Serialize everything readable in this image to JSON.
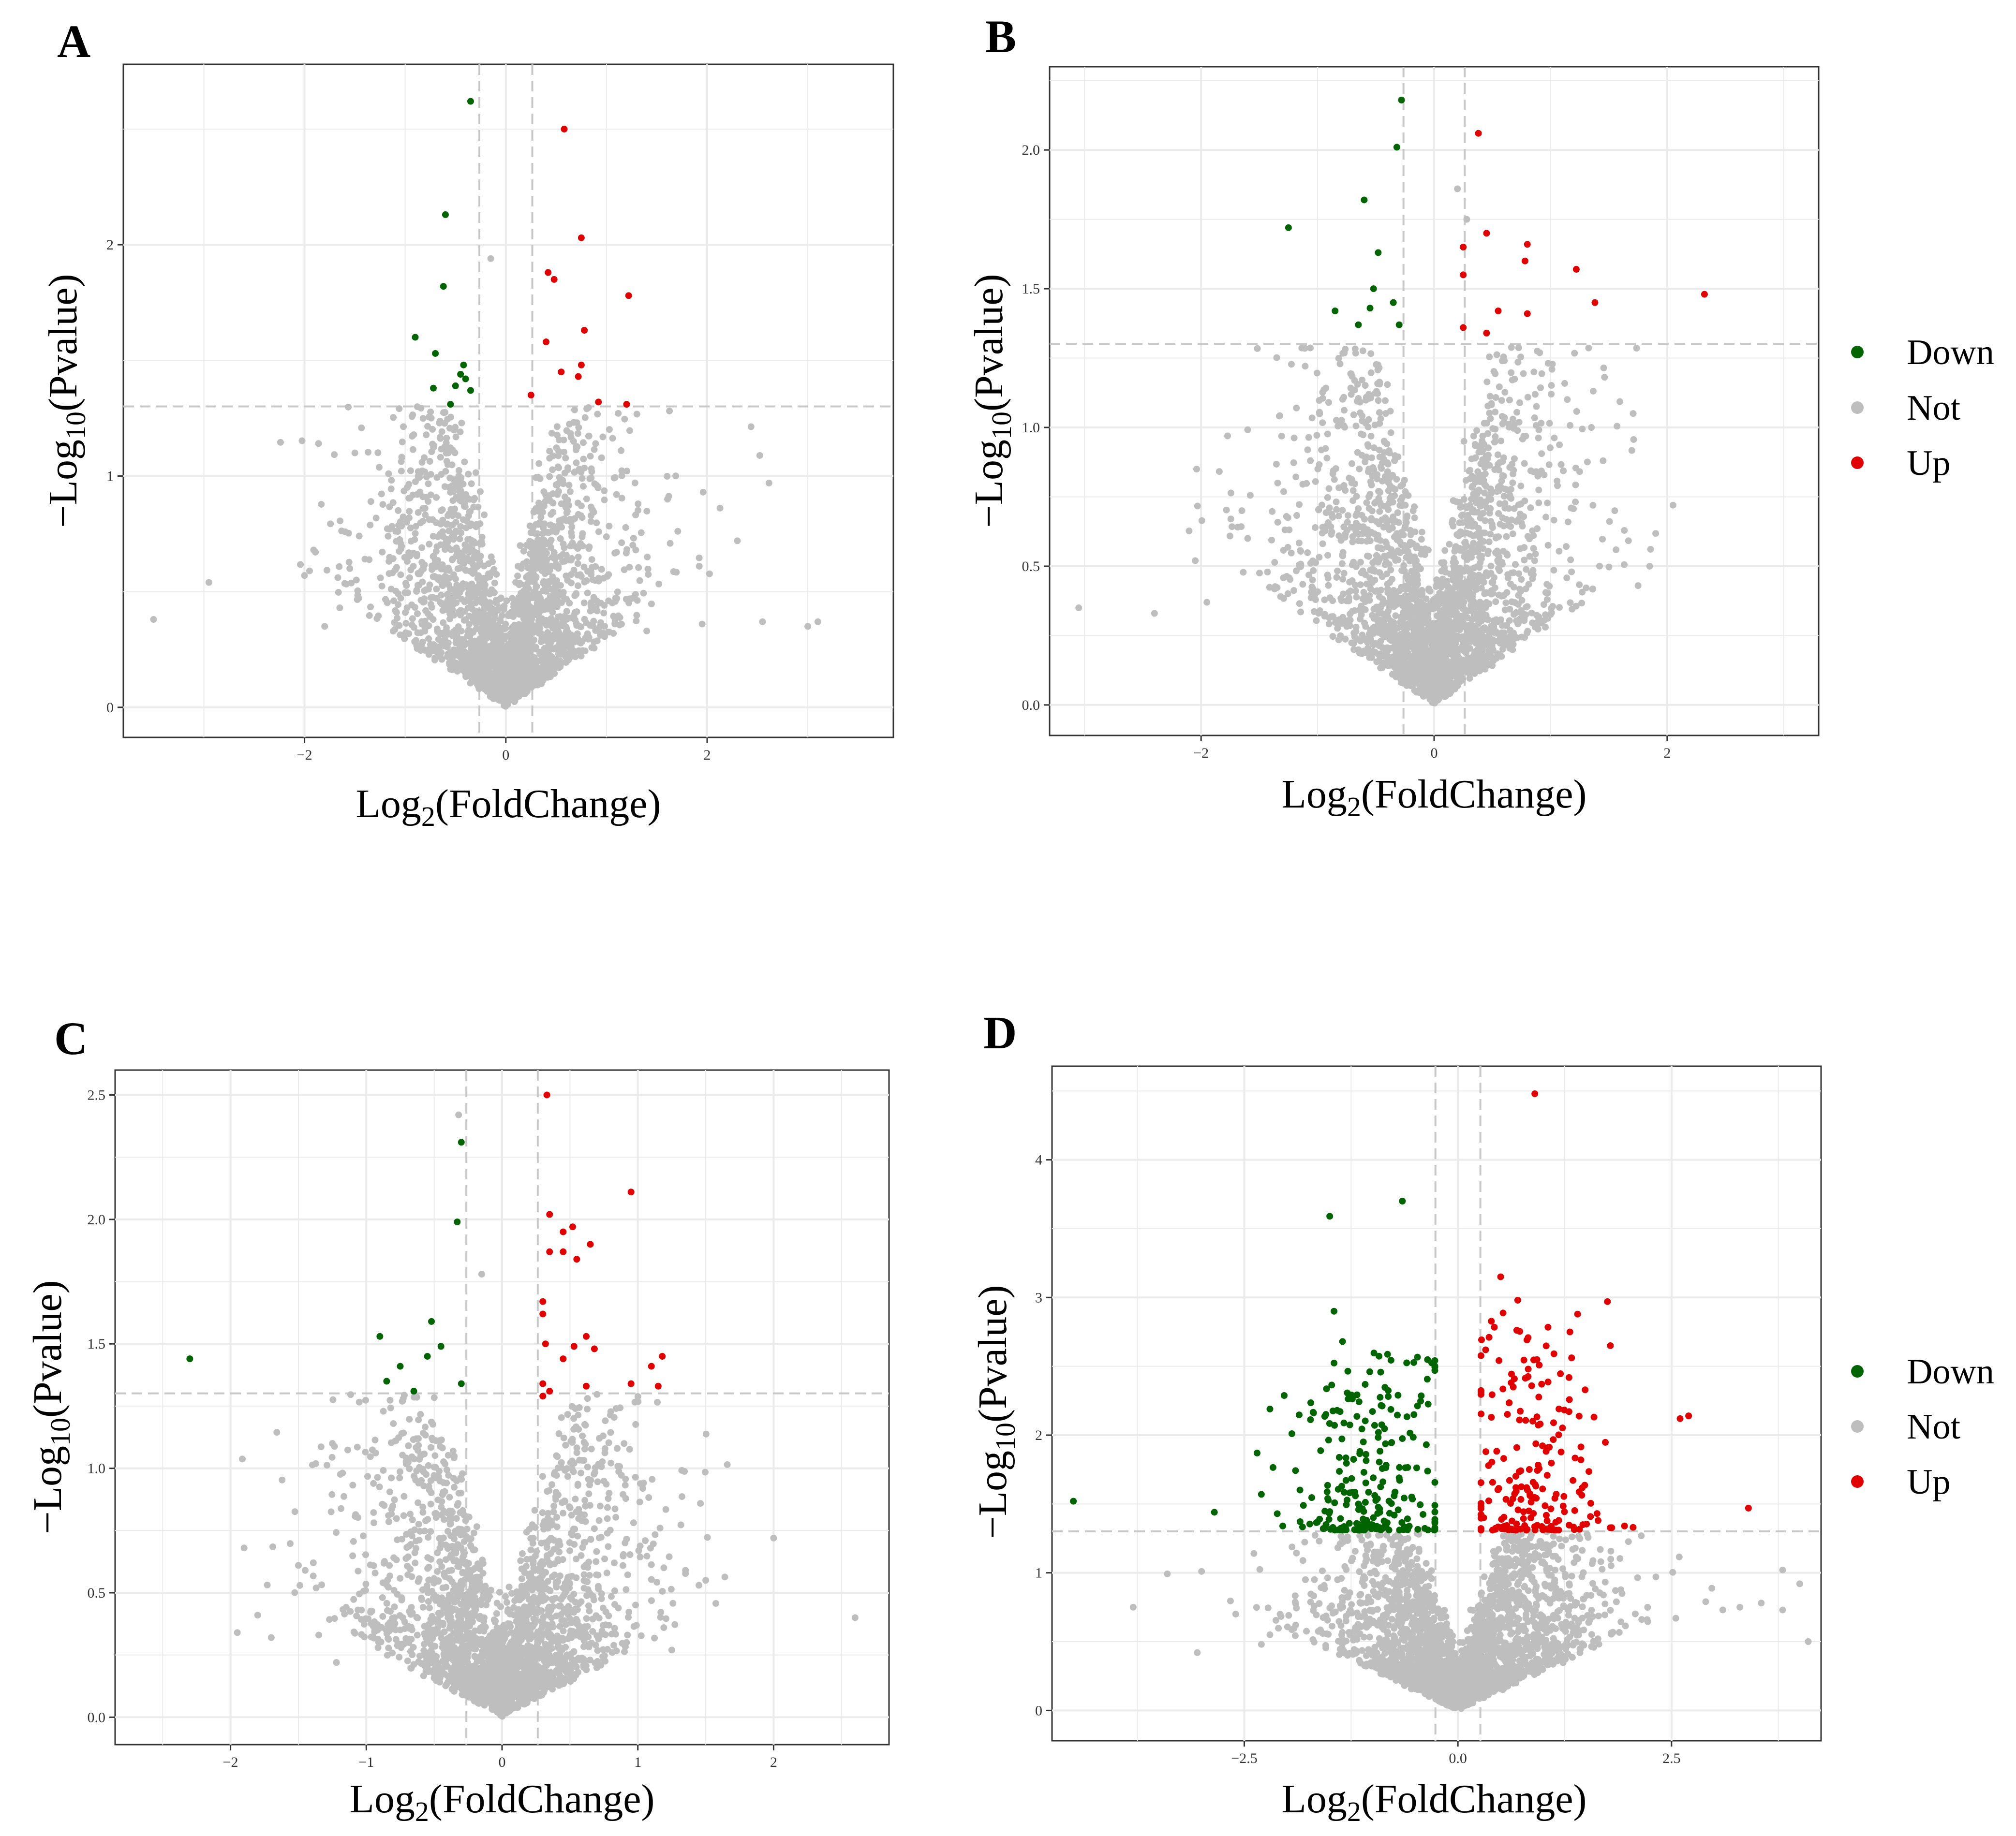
{
  "chart_data": [
    {
      "panel": "A",
      "type": "scatter",
      "title": "",
      "xlabel": "Log2(FoldChange)",
      "ylabel": "-Log10(Pvalue)",
      "xlim": [
        -3.8,
        3.85
      ],
      "ylim": [
        -0.13,
        2.78
      ],
      "xticks": [
        -2,
        0,
        2
      ],
      "xtick_labels": [
        "-2",
        "0",
        "2"
      ],
      "yticks": [
        0,
        1,
        2
      ],
      "ytick_labels": [
        "0",
        "1",
        "2"
      ],
      "fc_threshold": 0.263,
      "p_threshold": 1.301,
      "legend": null,
      "series": [
        {
          "name": "Down",
          "color": "#006400",
          "points": [
            [
              -0.35,
              2.62
            ],
            [
              -0.6,
              2.13
            ],
            [
              -0.62,
              1.82
            ],
            [
              -0.9,
              1.6
            ],
            [
              -0.7,
              1.53
            ],
            [
              -0.42,
              1.48
            ],
            [
              -0.45,
              1.44
            ],
            [
              -0.72,
              1.38
            ],
            [
              -0.5,
              1.39
            ],
            [
              -0.35,
              1.37
            ],
            [
              -0.55,
              1.31
            ],
            [
              -0.4,
              1.42
            ]
          ]
        },
        {
          "name": "Up",
          "color": "#e00000",
          "points": [
            [
              0.58,
              2.5
            ],
            [
              0.75,
              2.03
            ],
            [
              0.42,
              1.88
            ],
            [
              0.48,
              1.85
            ],
            [
              1.22,
              1.78
            ],
            [
              0.78,
              1.63
            ],
            [
              0.4,
              1.58
            ],
            [
              0.75,
              1.48
            ],
            [
              0.55,
              1.45
            ],
            [
              0.72,
              1.43
            ],
            [
              0.25,
              1.35
            ],
            [
              0.92,
              1.32
            ],
            [
              1.2,
              1.31
            ]
          ]
        }
      ],
      "background": {
        "name": "Not",
        "color": "#bebebe",
        "count": 2400,
        "seed": 11,
        "xscale": 0.6,
        "ymax": 1.3,
        "outliers": [
          [
            -3.5,
            0.38
          ],
          [
            -2.95,
            0.54
          ],
          [
            -2.0,
            0.57
          ],
          [
            -1.95,
            0.59
          ],
          [
            -1.8,
            0.35
          ],
          [
            -1.65,
            0.43
          ],
          [
            -1.55,
            0.6
          ],
          [
            -1.5,
            1.1
          ],
          [
            2.3,
            0.72
          ],
          [
            2.55,
            0.37
          ],
          [
            3.0,
            0.35
          ],
          [
            3.1,
            0.37
          ],
          [
            1.95,
            0.36
          ],
          [
            1.4,
            0.33
          ],
          [
            -0.15,
            1.94
          ],
          [
            1.1,
            0.92
          ]
        ]
      }
    },
    {
      "panel": "B",
      "type": "scatter",
      "title": "",
      "xlabel": "Log2(FoldChange)",
      "ylabel": "-Log10(Pvalue)",
      "xlim": [
        -3.3,
        3.3
      ],
      "ylim": [
        -0.11,
        2.3
      ],
      "xticks": [
        -2,
        0,
        2
      ],
      "xtick_labels": [
        "-2",
        "0",
        "2"
      ],
      "yticks": [
        0,
        0.5,
        1,
        1.5,
        2
      ],
      "ytick_labels": [
        "0.0",
        "0.5",
        "1.0",
        "1.5",
        "2.0"
      ],
      "fc_threshold": 0.263,
      "p_threshold": 1.301,
      "legend": {
        "items": [
          "Down",
          "Not",
          "Up"
        ]
      },
      "series": [
        {
          "name": "Down",
          "color": "#006400",
          "points": [
            [
              -0.28,
              2.18
            ],
            [
              -0.32,
              2.01
            ],
            [
              -0.6,
              1.82
            ],
            [
              -1.25,
              1.72
            ],
            [
              -0.48,
              1.63
            ],
            [
              -0.52,
              1.5
            ],
            [
              -0.35,
              1.45
            ],
            [
              -0.55,
              1.43
            ],
            [
              -0.85,
              1.42
            ],
            [
              -0.65,
              1.37
            ],
            [
              -0.3,
              1.37
            ]
          ]
        },
        {
          "name": "Up",
          "color": "#e00000",
          "points": [
            [
              0.38,
              2.06
            ],
            [
              0.45,
              1.7
            ],
            [
              0.8,
              1.66
            ],
            [
              0.25,
              1.65
            ],
            [
              0.78,
              1.6
            ],
            [
              1.22,
              1.57
            ],
            [
              0.25,
              1.55
            ],
            [
              2.32,
              1.48
            ],
            [
              1.38,
              1.45
            ],
            [
              0.55,
              1.42
            ],
            [
              0.8,
              1.41
            ],
            [
              0.25,
              1.36
            ],
            [
              0.45,
              1.34
            ]
          ]
        }
      ],
      "background": {
        "name": "Not",
        "color": "#bebebe",
        "count": 2400,
        "seed": 22,
        "xscale": 0.55,
        "ymax": 1.3,
        "outliers": [
          [
            -3.05,
            0.35
          ],
          [
            -2.4,
            0.33
          ],
          [
            -2.05,
            0.52
          ],
          [
            -1.95,
            0.37
          ],
          [
            -1.6,
            0.6
          ],
          [
            -1.65,
            0.7
          ],
          [
            2.05,
            0.72
          ],
          [
            1.85,
            0.5
          ],
          [
            1.75,
            0.43
          ],
          [
            1.55,
            0.7
          ],
          [
            1.45,
            0.88
          ],
          [
            1.35,
            1.0
          ],
          [
            0.2,
            1.86
          ],
          [
            0.28,
            1.75
          ]
        ]
      }
    },
    {
      "panel": "C",
      "type": "scatter",
      "title": "",
      "xlabel": "Log2(FoldChange)",
      "ylabel": "-Log10(Pvalue)",
      "xlim": [
        -2.85,
        2.85
      ],
      "ylim": [
        -0.11,
        2.6
      ],
      "xticks": [
        -2,
        -1,
        0,
        1,
        2
      ],
      "xtick_labels": [
        "-2",
        "-1",
        "0",
        "1",
        "2"
      ],
      "yticks": [
        0,
        0.5,
        1,
        1.5,
        2,
        2.5
      ],
      "ytick_labels": [
        "0.0",
        "0.5",
        "1.0",
        "1.5",
        "2.0",
        "2.5"
      ],
      "fc_threshold": 0.263,
      "p_threshold": 1.301,
      "legend": null,
      "series": [
        {
          "name": "Down",
          "color": "#006400",
          "points": [
            [
              -0.3,
              2.31
            ],
            [
              -0.33,
              1.99
            ],
            [
              -0.52,
              1.59
            ],
            [
              -0.9,
              1.53
            ],
            [
              -0.45,
              1.49
            ],
            [
              -0.55,
              1.45
            ],
            [
              -2.3,
              1.44
            ],
            [
              -0.75,
              1.41
            ],
            [
              -0.85,
              1.35
            ],
            [
              -0.3,
              1.34
            ],
            [
              -0.65,
              1.31
            ]
          ]
        },
        {
          "name": "Up",
          "color": "#e00000",
          "points": [
            [
              0.33,
              2.5
            ],
            [
              0.35,
              2.02
            ],
            [
              0.95,
              2.11
            ],
            [
              0.52,
              1.97
            ],
            [
              0.45,
              1.95
            ],
            [
              0.65,
              1.9
            ],
            [
              0.35,
              1.87
            ],
            [
              0.45,
              1.87
            ],
            [
              0.55,
              1.84
            ],
            [
              0.3,
              1.67
            ],
            [
              0.3,
              1.62
            ],
            [
              0.32,
              1.5
            ],
            [
              0.53,
              1.49
            ],
            [
              0.62,
              1.53
            ],
            [
              0.68,
              1.48
            ],
            [
              0.45,
              1.44
            ],
            [
              1.18,
              1.45
            ],
            [
              1.1,
              1.41
            ],
            [
              0.95,
              1.34
            ],
            [
              0.62,
              1.33
            ],
            [
              1.15,
              1.33
            ],
            [
              0.35,
              1.31
            ],
            [
              0.3,
              1.34
            ],
            [
              0.3,
              1.29
            ]
          ]
        }
      ],
      "background": {
        "name": "Not",
        "color": "#bebebe",
        "count": 2400,
        "seed": 33,
        "xscale": 0.5,
        "ymax": 1.25,
        "outliers": [
          [
            -1.9,
            0.68
          ],
          [
            -1.95,
            0.34
          ],
          [
            -1.8,
            0.41
          ],
          [
            -1.7,
            0.32
          ],
          [
            -1.5,
            0.61
          ],
          [
            -1.45,
            0.59
          ],
          [
            -1.35,
            0.33
          ],
          [
            -1.22,
            0.22
          ],
          [
            -1.25,
            1.1
          ],
          [
            2.6,
            0.4
          ],
          [
            2.0,
            0.72
          ],
          [
            1.5,
            0.55
          ],
          [
            1.45,
            0.53
          ],
          [
            1.25,
            0.27
          ],
          [
            -0.15,
            1.78
          ],
          [
            -0.32,
            2.42
          ]
        ]
      }
    },
    {
      "panel": "D",
      "type": "scatter",
      "title": "",
      "xlabel": "Log2(FoldChange)",
      "ylabel": "-Log10(Pvalue)",
      "xlim": [
        -4.75,
        4.25
      ],
      "ylim": [
        -0.22,
        4.68
      ],
      "xticks": [
        -2.5,
        0,
        2.5
      ],
      "xtick_labels": [
        "-2.5",
        "0.0",
        "2.5"
      ],
      "yticks": [
        0,
        1,
        2,
        3,
        4
      ],
      "ytick_labels": [
        "0",
        "1",
        "2",
        "3",
        "4"
      ],
      "fc_threshold": 0.263,
      "p_threshold": 1.301,
      "legend": {
        "items": [
          "Down",
          "Not",
          "Up"
        ]
      },
      "series": [
        {
          "name": "Down",
          "color": "#006400",
          "generated": {
            "count": 240,
            "seed": 44,
            "xmin": -2.2,
            "xmax": -0.27,
            "xmean": -1.05,
            "xsd": 0.42,
            "ymin": 1.31,
            "ymax": 2.6
          },
          "points": [
            [
              -0.65,
              3.7
            ],
            [
              -1.5,
              3.59
            ],
            [
              -1.45,
              2.9
            ],
            [
              -1.35,
              2.68
            ],
            [
              -4.5,
              1.52
            ],
            [
              -2.85,
              1.44
            ],
            [
              -2.35,
              1.87
            ],
            [
              -2.3,
              1.57
            ],
            [
              -2.05,
              1.34
            ]
          ]
        },
        {
          "name": "Up",
          "color": "#e00000",
          "generated": {
            "count": 200,
            "seed": 55,
            "xmin": 0.27,
            "xmax": 2.1,
            "xmean": 0.85,
            "xsd": 0.42,
            "ymin": 1.31,
            "ymax": 2.9
          },
          "points": [
            [
              0.9,
              4.48
            ],
            [
              0.5,
              3.15
            ],
            [
              1.75,
              2.97
            ],
            [
              0.7,
              2.98
            ],
            [
              2.6,
              2.12
            ],
            [
              2.7,
              2.14
            ],
            [
              3.4,
              1.47
            ],
            [
              1.95,
              1.34
            ],
            [
              2.05,
              1.33
            ]
          ]
        }
      ],
      "background": {
        "name": "Not",
        "color": "#bebebe",
        "count": 2600,
        "seed": 66,
        "xscale": 0.75,
        "ymax": 1.28,
        "outliers": [
          [
            -3.8,
            0.75
          ],
          [
            -3.0,
            1.01
          ],
          [
            -3.05,
            0.42
          ],
          [
            -2.3,
            0.48
          ],
          [
            -2.2,
            0.55
          ],
          [
            -2.6,
            0.7
          ],
          [
            4.1,
            0.5
          ],
          [
            4.0,
            0.92
          ],
          [
            3.8,
            0.73
          ],
          [
            3.55,
            0.78
          ],
          [
            3.3,
            0.75
          ],
          [
            3.1,
            0.73
          ],
          [
            2.9,
            0.79
          ],
          [
            3.8,
            1.02
          ],
          [
            2.55,
            0.67
          ]
        ]
      }
    }
  ],
  "legends": [
    {
      "items": [
        "Down",
        "Not",
        "Up"
      ],
      "colors": [
        "#006400",
        "#bebebe",
        "#e00000"
      ]
    },
    {
      "items": [
        "Down",
        "Not",
        "Up"
      ],
      "colors": [
        "#006400",
        "#bebebe",
        "#e00000"
      ]
    }
  ],
  "panel_labels": [
    "A",
    "B",
    "C",
    "D"
  ]
}
